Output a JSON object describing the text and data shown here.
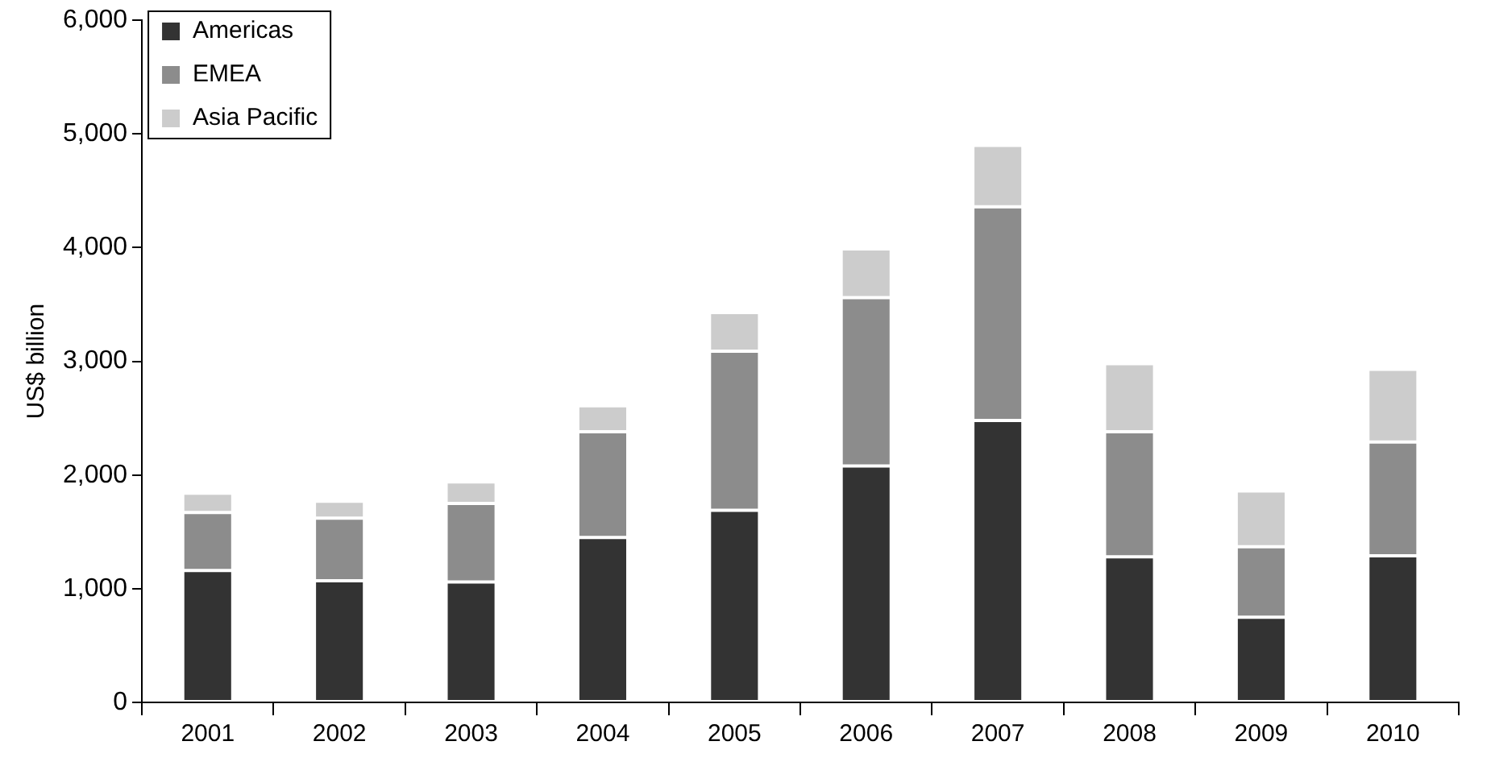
{
  "chart_data": {
    "type": "bar",
    "stacked": true,
    "ylabel": "US$ billion",
    "categories": [
      "2001",
      "2002",
      "2003",
      "2004",
      "2005",
      "2006",
      "2007",
      "2008",
      "2009",
      "2010"
    ],
    "series": [
      {
        "name": "Americas",
        "color": "#333333",
        "values": [
          1160,
          1070,
          1060,
          1450,
          1690,
          2080,
          2480,
          1280,
          750,
          1290
        ]
      },
      {
        "name": "EMEA",
        "color": "#8c8c8c",
        "values": [
          510,
          550,
          690,
          930,
          1400,
          1480,
          1880,
          1100,
          620,
          1000
        ]
      },
      {
        "name": "Asia Pacific",
        "color": "#cccccc",
        "values": [
          170,
          150,
          190,
          230,
          340,
          430,
          540,
          600,
          490,
          640
        ]
      }
    ],
    "ylim": [
      0,
      6000
    ],
    "yticks": [
      {
        "value": 0,
        "label": "0"
      },
      {
        "value": 1000,
        "label": "1,000"
      },
      {
        "value": 2000,
        "label": "2,000"
      },
      {
        "value": 3000,
        "label": "3,000"
      },
      {
        "value": 4000,
        "label": "4,000"
      },
      {
        "value": 5000,
        "label": "5,000"
      },
      {
        "value": 6000,
        "label": "6,000"
      }
    ],
    "grid": false,
    "legend": "top left"
  }
}
